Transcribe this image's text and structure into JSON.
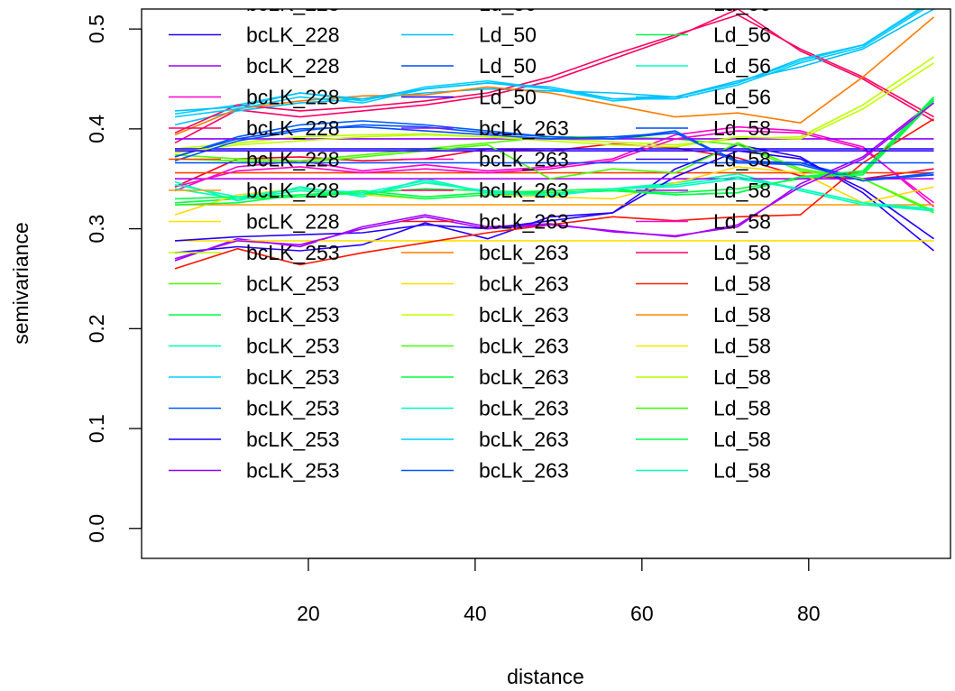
{
  "chart_data": {
    "type": "line",
    "title": "",
    "xlabel": "distance",
    "ylabel": "semivariance",
    "xlim": [
      0,
      97
    ],
    "ylim": [
      -0.03,
      0.52
    ],
    "x_ticks": [
      20,
      40,
      60,
      80
    ],
    "y_ticks": [
      0.0,
      0.1,
      0.2,
      0.3,
      0.4,
      0.5
    ],
    "x_tick_labels": [
      "20",
      "40",
      "60",
      "80"
    ],
    "y_tick_labels": [
      "0.0",
      "0.1",
      "0.2",
      "0.3",
      "0.4",
      "0.5"
    ],
    "grid": false,
    "legend_position": "top-left, inside plot, 3 columns",
    "x": [
      4,
      11.5,
      19,
      26.5,
      34,
      41.5,
      49,
      56.5,
      64,
      71.5,
      79,
      86.5,
      95
    ],
    "series": [
      {
        "name": "bcLK_228",
        "color": "#FF0029",
        "values": [
          0.342,
          0.37,
          0.372,
          0.368,
          0.37,
          0.38,
          0.378,
          0.385,
          0.381,
          0.371,
          0.353,
          0.35,
          0.36
        ]
      },
      {
        "name": "bcLK_228",
        "color": "#2600FF",
        "values": [
          0.276,
          0.282,
          0.278,
          0.284,
          0.306,
          0.29,
          0.312,
          0.316,
          0.36,
          0.384,
          0.372,
          0.336,
          0.278
        ]
      },
      {
        "name": "bcLK_228",
        "color": "#9E00FF",
        "values": [
          0.268,
          0.29,
          0.282,
          0.302,
          0.314,
          0.302,
          0.305,
          0.297,
          0.293,
          0.302,
          0.345,
          0.372,
          0.428
        ]
      },
      {
        "name": "bcLK_228",
        "color": "#FF00D1",
        "values": [
          0.338,
          0.362,
          0.368,
          0.358,
          0.364,
          0.358,
          0.362,
          0.37,
          0.394,
          0.402,
          0.398,
          0.382,
          0.322
        ]
      },
      {
        "name": "bcLK_228",
        "color": "#FF0066",
        "values": [
          0.386,
          0.419,
          0.412,
          0.418,
          0.424,
          0.433,
          0.448,
          0.47,
          0.492,
          0.52,
          0.478,
          0.45,
          0.408
        ]
      },
      {
        "name": "bcLK_228",
        "color": "#FF4000",
        "values": [
          0.356,
          0.356,
          0.356,
          0.356,
          0.356,
          0.356,
          0.356,
          0.356,
          0.356,
          0.356,
          0.356,
          0.356,
          0.356
        ]
      },
      {
        "name": "bcLK_228",
        "color": "#FF9900",
        "values": [
          0.324,
          0.324,
          0.324,
          0.324,
          0.324,
          0.324,
          0.324,
          0.324,
          0.324,
          0.324,
          0.324,
          0.324,
          0.324
        ]
      },
      {
        "name": "bcLK_228",
        "color": "#FFE100",
        "values": [
          0.288,
          0.288,
          0.288,
          0.288,
          0.288,
          0.288,
          0.288,
          0.288,
          0.288,
          0.288,
          0.288,
          0.288,
          0.288
        ]
      },
      {
        "name": "bcLK_253",
        "color": "#BAFF00",
        "values": [
          0.38,
          0.386,
          0.392,
          0.394,
          0.395,
          0.392,
          0.39,
          0.387,
          0.384,
          0.39,
          0.392,
          0.424,
          0.472
        ]
      },
      {
        "name": "bcLK_253",
        "color": "#4DFF00",
        "values": [
          0.374,
          0.37,
          0.368,
          0.374,
          0.38,
          0.386,
          0.392,
          0.392,
          0.39,
          0.384,
          0.358,
          0.35,
          0.318
        ]
      },
      {
        "name": "bcLK_253",
        "color": "#00FF3A",
        "values": [
          0.326,
          0.33,
          0.332,
          0.336,
          0.34,
          0.338,
          0.336,
          0.338,
          0.336,
          0.34,
          0.35,
          0.356,
          0.43
        ]
      },
      {
        "name": "bcLK_253",
        "color": "#00FFAE",
        "values": [
          0.347,
          0.328,
          0.342,
          0.332,
          0.35,
          0.336,
          0.333,
          0.34,
          0.346,
          0.355,
          0.338,
          0.324,
          0.318
        ]
      },
      {
        "name": "bcLK_253",
        "color": "#00D2FF",
        "values": [
          0.415,
          0.424,
          0.436,
          0.428,
          0.442,
          0.448,
          0.44,
          0.428,
          0.432,
          0.446,
          0.468,
          0.484,
          0.53
        ]
      },
      {
        "name": "bcLK_253",
        "color": "#005CFF",
        "values": [
          0.372,
          0.392,
          0.404,
          0.408,
          0.404,
          0.398,
          0.392,
          0.39,
          0.398,
          0.366,
          0.366,
          0.348,
          0.354
        ]
      },
      {
        "name": "bcLK_253",
        "color": "#1100FF",
        "values": [
          0.38,
          0.38,
          0.38,
          0.38,
          0.38,
          0.38,
          0.38,
          0.38,
          0.38,
          0.38,
          0.38,
          0.38,
          0.38
        ]
      },
      {
        "name": "bcLK_253",
        "color": "#9000FF",
        "values": [
          0.39,
          0.39,
          0.39,
          0.39,
          0.39,
          0.39,
          0.39,
          0.39,
          0.39,
          0.39,
          0.39,
          0.39,
          0.39
        ]
      },
      {
        "name": "Ld_50",
        "color": "#00BFFF",
        "values": [
          0.404,
          0.418,
          0.426,
          0.43,
          0.436,
          0.44,
          0.438,
          0.436,
          0.432,
          0.448,
          0.462,
          0.48,
          0.52
        ]
      },
      {
        "name": "Ld_50",
        "color": "#004CFF",
        "values": [
          0.372,
          0.39,
          0.4,
          0.402,
          0.398,
          0.394,
          0.39,
          0.392,
          0.396,
          0.368,
          0.366,
          0.35,
          0.354
        ]
      },
      {
        "name": "Ld_50",
        "color": "#2100FF",
        "values": [
          0.288,
          0.292,
          0.294,
          0.296,
          0.304,
          0.3,
          0.308,
          0.316,
          0.352,
          0.378,
          0.37,
          0.34,
          0.29
        ]
      },
      {
        "name": "bcLk_263",
        "color": "#A700FF",
        "values": [
          0.35,
          0.35,
          0.35,
          0.35,
          0.35,
          0.35,
          0.35,
          0.35,
          0.35,
          0.35,
          0.35,
          0.35,
          0.35
        ]
      },
      {
        "name": "bcLk_263",
        "color": "#FF00C6",
        "values": [
          0.342,
          0.358,
          0.362,
          0.356,
          0.36,
          0.356,
          0.36,
          0.368,
          0.39,
          0.398,
          0.396,
          0.38,
          0.326
        ]
      },
      {
        "name": "bcLk_263",
        "color": "#FF005B",
        "values": [
          0.396,
          0.424,
          0.418,
          0.422,
          0.428,
          0.436,
          0.452,
          0.474,
          0.494,
          0.514,
          0.48,
          0.452,
          0.412
        ]
      },
      {
        "name": "bcLk_263",
        "color": "#FF1400",
        "values": [
          0.26,
          0.28,
          0.264,
          0.276,
          0.286,
          0.296,
          0.304,
          0.312,
          0.308,
          0.312,
          0.314,
          0.366,
          0.41
        ]
      },
      {
        "name": "bcLk_263",
        "color": "#FF7A00",
        "values": [
          0.394,
          0.42,
          0.428,
          0.433,
          0.434,
          0.442,
          0.436,
          0.424,
          0.412,
          0.416,
          0.406,
          0.452,
          0.512
        ]
      },
      {
        "name": "bcLk_263",
        "color": "#FFDA00",
        "values": [
          0.314,
          0.334,
          0.34,
          0.334,
          0.33,
          0.334,
          0.332,
          0.33,
          0.346,
          0.362,
          0.356,
          0.326,
          0.342
        ]
      },
      {
        "name": "bcLk_263",
        "color": "#C1FF00",
        "values": [
          0.376,
          0.384,
          0.388,
          0.392,
          0.394,
          0.392,
          0.388,
          0.384,
          0.382,
          0.392,
          0.39,
          0.42,
          0.466
        ]
      },
      {
        "name": "bcLk_263",
        "color": "#46FF00",
        "values": [
          0.37,
          0.368,
          0.366,
          0.372,
          0.378,
          0.384,
          0.35,
          0.36,
          0.356,
          0.386,
          0.36,
          0.35,
          0.316
        ]
      },
      {
        "name": "bcLk_263",
        "color": "#00FF41",
        "values": [
          0.324,
          0.326,
          0.334,
          0.338,
          0.332,
          0.336,
          0.338,
          0.34,
          0.334,
          0.336,
          0.352,
          0.358,
          0.432
        ]
      },
      {
        "name": "bcLk_263",
        "color": "#00FFB5",
        "values": [
          0.34,
          0.33,
          0.338,
          0.334,
          0.346,
          0.338,
          0.334,
          0.34,
          0.344,
          0.352,
          0.34,
          0.326,
          0.32
        ]
      },
      {
        "name": "bcLk_263",
        "color": "#00CBFF",
        "values": [
          0.412,
          0.42,
          0.432,
          0.426,
          0.44,
          0.446,
          0.44,
          0.43,
          0.43,
          0.444,
          0.466,
          0.482,
          0.526
        ]
      },
      {
        "name": "bcLk_263",
        "color": "#0055FF",
        "values": [
          0.368,
          0.388,
          0.398,
          0.404,
          0.402,
          0.396,
          0.392,
          0.39,
          0.396,
          0.366,
          0.364,
          0.348,
          0.356
        ]
      },
      {
        "name": "Ld_56",
        "color": "#00FF4D",
        "values": [
          0.33,
          0.332,
          0.334,
          0.336,
          0.33,
          0.334,
          0.336,
          0.338,
          0.334,
          0.336,
          0.352,
          0.354,
          0.428
        ]
      },
      {
        "name": "Ld_56",
        "color": "#00FFC0",
        "values": [
          0.344,
          0.332,
          0.34,
          0.336,
          0.348,
          0.336,
          0.334,
          0.34,
          0.342,
          0.35,
          0.34,
          0.326,
          0.318
        ]
      },
      {
        "name": "Ld_56",
        "color": "#00C0FF",
        "values": [
          0.418,
          0.422,
          0.436,
          0.43,
          0.44,
          0.446,
          0.442,
          0.43,
          0.432,
          0.446,
          0.47,
          0.484,
          0.528
        ]
      },
      {
        "name": "Ld_58",
        "color": "#0049FF",
        "values": [
          0.366,
          0.366,
          0.366,
          0.366,
          0.366,
          0.366,
          0.366,
          0.366,
          0.366,
          0.366,
          0.366,
          0.366,
          0.366
        ]
      },
      {
        "name": "Ld_58",
        "color": "#2C00FF",
        "values": [
          0.378,
          0.378,
          0.378,
          0.378,
          0.378,
          0.378,
          0.378,
          0.378,
          0.378,
          0.378,
          0.378,
          0.378,
          0.378
        ]
      },
      {
        "name": "Ld_58",
        "color": "#A900FF",
        "values": [
          0.27,
          0.288,
          0.284,
          0.3,
          0.312,
          0.3,
          0.304,
          0.298,
          0.292,
          0.304,
          0.342,
          0.37,
          0.426
        ]
      }
    ],
    "legend": [
      [
        {
          "label": "bcLK_228",
          "color": "#FF0029",
          "partial": true
        },
        {
          "label": "bcLK_228",
          "color": "#2600FF"
        },
        {
          "label": "bcLK_228",
          "color": "#9E00FF"
        },
        {
          "label": "bcLK_228",
          "color": "#FF00D1"
        },
        {
          "label": "bcLK_228",
          "color": "#FF0066"
        },
        {
          "label": "bcLK_228",
          "color": "#FF4000"
        },
        {
          "label": "bcLK_228",
          "color": "#FF9900"
        },
        {
          "label": "bcLK_228",
          "color": "#FFE100"
        },
        {
          "label": "bcLK_253",
          "color": "#BAFF00"
        },
        {
          "label": "bcLK_253",
          "color": "#4DFF00"
        },
        {
          "label": "bcLK_253",
          "color": "#00FF3A"
        },
        {
          "label": "bcLK_253",
          "color": "#00FFAE"
        },
        {
          "label": "bcLK_253",
          "color": "#00D2FF"
        },
        {
          "label": "bcLK_253",
          "color": "#005CFF"
        },
        {
          "label": "bcLK_253",
          "color": "#1100FF"
        },
        {
          "label": "bcLK_253",
          "color": "#9000FF"
        }
      ],
      [
        {
          "label": "Ld_50",
          "color": "#00BFFF",
          "partial": true
        },
        {
          "label": "Ld_50",
          "color": "#00BFFF"
        },
        {
          "label": "Ld_50",
          "color": "#004CFF"
        },
        {
          "label": "Ld_50",
          "color": "#2100FF"
        },
        {
          "label": "bcLk_263",
          "color": "#A700FF"
        },
        {
          "label": "bcLk_263",
          "color": "#FF00C6"
        },
        {
          "label": "bcLk_263",
          "color": "#FF005B"
        },
        {
          "label": "bcLk_263",
          "color": "#FF1400"
        },
        {
          "label": "bcLk_263",
          "color": "#FF7A00"
        },
        {
          "label": "bcLk_263",
          "color": "#FFDA00"
        },
        {
          "label": "bcLk_263",
          "color": "#C1FF00"
        },
        {
          "label": "bcLk_263",
          "color": "#46FF00"
        },
        {
          "label": "bcLk_263",
          "color": "#00FF41"
        },
        {
          "label": "bcLk_263",
          "color": "#00FFB5"
        },
        {
          "label": "bcLk_263",
          "color": "#00CBFF"
        },
        {
          "label": "bcLk_263",
          "color": "#0055FF"
        }
      ],
      [
        {
          "label": "Ld_56",
          "color": "#00FF4D",
          "partial": true
        },
        {
          "label": "Ld_56",
          "color": "#00FF4D"
        },
        {
          "label": "Ld_56",
          "color": "#00FFC0"
        },
        {
          "label": "Ld_56",
          "color": "#00C0FF"
        },
        {
          "label": "Ld_58",
          "color": "#0049FF"
        },
        {
          "label": "Ld_58",
          "color": "#2C00FF"
        },
        {
          "label": "Ld_58",
          "color": "#A900FF"
        },
        {
          "label": "Ld_58",
          "color": "#FF00E5"
        },
        {
          "label": "Ld_58",
          "color": "#FF0070"
        },
        {
          "label": "Ld_58",
          "color": "#FF1F00"
        },
        {
          "label": "Ld_58",
          "color": "#FF8500"
        },
        {
          "label": "Ld_58",
          "color": "#FFE500"
        },
        {
          "label": "Ld_58",
          "color": "#B6FF00"
        },
        {
          "label": "Ld_58",
          "color": "#3BFF00"
        },
        {
          "label": "Ld_58",
          "color": "#00FF4C"
        },
        {
          "label": "Ld_58",
          "color": "#00FFC0"
        }
      ]
    ]
  }
}
